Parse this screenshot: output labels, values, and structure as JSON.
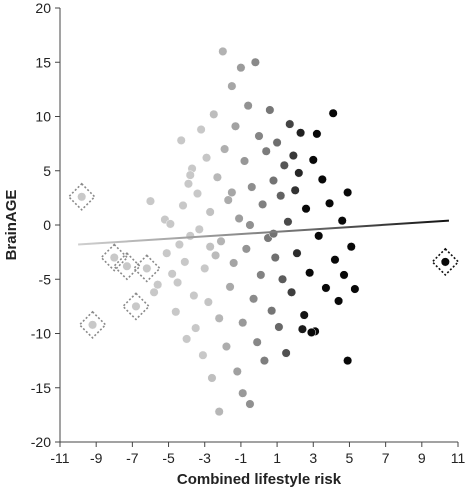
{
  "chart_data": {
    "type": "scatter",
    "xlabel": "Combined lifestyle risk",
    "ylabel": "BrainAGE",
    "xlim": [
      -11,
      11
    ],
    "ylim": [
      -20,
      20
    ],
    "x_ticks": [
      -11,
      -9,
      -7,
      -5,
      -3,
      -1,
      1,
      3,
      5,
      7,
      9,
      11
    ],
    "y_ticks": [
      -20,
      -15,
      -10,
      -5,
      0,
      5,
      10,
      15,
      20
    ],
    "grid": false,
    "legend": "none",
    "point_shading": "gray-to-black gradient with increasing combined lifestyle risk",
    "colors": {
      "low_risk": "#cccccc",
      "mid_risk": "#6e6e6e",
      "high_risk": "#000000",
      "axis": "#444444"
    },
    "trend_line": {
      "x": [
        -10,
        10.5
      ],
      "y": [
        -1.8,
        0.4
      ]
    },
    "highlighted_points": [
      {
        "x": -9.8,
        "y": 2.6
      },
      {
        "x": -9.2,
        "y": -9.2
      },
      {
        "x": -8.0,
        "y": -3.0
      },
      {
        "x": -7.3,
        "y": -3.8
      },
      {
        "x": -6.8,
        "y": -7.5
      },
      {
        "x": -6.2,
        "y": -4.0
      },
      {
        "x": 10.3,
        "y": -3.4
      }
    ],
    "points": [
      [
        -9.8,
        2.6
      ],
      [
        -9.2,
        -9.2
      ],
      [
        -8.0,
        -3.0
      ],
      [
        -7.3,
        -3.8
      ],
      [
        -6.8,
        -7.5
      ],
      [
        -6.2,
        -4.0
      ],
      [
        10.3,
        -3.4
      ],
      [
        -6.0,
        2.2
      ],
      [
        -5.8,
        -6.2
      ],
      [
        -5.6,
        -5.5
      ],
      [
        -5.2,
        0.5
      ],
      [
        -5.1,
        -2.6
      ],
      [
        -4.9,
        0.1
      ],
      [
        -4.8,
        -4.5
      ],
      [
        -4.6,
        -8.0
      ],
      [
        -4.5,
        -5.3
      ],
      [
        -4.3,
        7.8
      ],
      [
        -4.2,
        1.8
      ],
      [
        -4.1,
        -3.4
      ],
      [
        -4.0,
        -10.5
      ],
      [
        -3.9,
        3.8
      ],
      [
        -3.8,
        -1.0
      ],
      [
        -3.7,
        5.2
      ],
      [
        -3.6,
        -6.5
      ],
      [
        -3.5,
        -9.5
      ],
      [
        -3.4,
        2.9
      ],
      [
        -3.3,
        -0.4
      ],
      [
        -3.2,
        8.8
      ],
      [
        -3.1,
        -12.0
      ],
      [
        -3.0,
        -4.0
      ],
      [
        -2.9,
        6.2
      ],
      [
        -2.8,
        -7.1
      ],
      [
        -2.7,
        1.2
      ],
      [
        -2.6,
        -14.1
      ],
      [
        -2.5,
        10.2
      ],
      [
        -2.4,
        -2.8
      ],
      [
        -2.3,
        4.4
      ],
      [
        -2.2,
        -8.6
      ],
      [
        -2.1,
        -1.5
      ],
      [
        -2.0,
        16.0
      ],
      [
        -1.9,
        7.0
      ],
      [
        -1.8,
        -11.2
      ],
      [
        -1.7,
        2.3
      ],
      [
        -1.6,
        -5.7
      ],
      [
        -1.5,
        12.8
      ],
      [
        -1.4,
        -3.5
      ],
      [
        -1.3,
        9.1
      ],
      [
        -1.2,
        -13.5
      ],
      [
        -1.1,
        0.6
      ],
      [
        -1.0,
        14.5
      ],
      [
        -0.9,
        -9.0
      ],
      [
        -0.8,
        5.9
      ],
      [
        -0.7,
        -2.2
      ],
      [
        -0.6,
        11.0
      ],
      [
        -0.5,
        -16.5
      ],
      [
        -0.4,
        3.5
      ],
      [
        -0.3,
        -6.8
      ],
      [
        -0.2,
        15.0
      ],
      [
        -0.1,
        -10.8
      ],
      [
        0.0,
        8.2
      ],
      [
        0.1,
        -4.6
      ],
      [
        0.2,
        1.9
      ],
      [
        0.3,
        -12.5
      ],
      [
        0.4,
        6.8
      ],
      [
        0.5,
        -1.2
      ],
      [
        0.6,
        10.6
      ],
      [
        0.7,
        -7.9
      ],
      [
        0.8,
        4.1
      ],
      [
        0.9,
        -3.0
      ],
      [
        1.0,
        7.6
      ],
      [
        1.1,
        -9.4
      ],
      [
        1.2,
        2.7
      ],
      [
        1.3,
        -5.0
      ],
      [
        1.4,
        5.5
      ],
      [
        1.5,
        -11.8
      ],
      [
        1.6,
        0.3
      ],
      [
        1.7,
        9.3
      ],
      [
        1.8,
        -6.2
      ],
      [
        2.0,
        3.2
      ],
      [
        2.1,
        -2.6
      ],
      [
        2.3,
        8.5
      ],
      [
        2.5,
        -8.3
      ],
      [
        2.6,
        1.5
      ],
      [
        2.8,
        -4.4
      ],
      [
        3.0,
        6.0
      ],
      [
        3.1,
        -9.8
      ],
      [
        3.3,
        -1.0
      ],
      [
        3.5,
        4.2
      ],
      [
        3.7,
        -5.8
      ],
      [
        3.9,
        2.0
      ],
      [
        4.1,
        10.3
      ],
      [
        4.2,
        -3.2
      ],
      [
        4.4,
        -7.0
      ],
      [
        4.6,
        0.4
      ],
      [
        4.7,
        -4.6
      ],
      [
        4.9,
        3.0
      ],
      [
        4.9,
        -12.5
      ],
      [
        5.1,
        -2.0
      ],
      [
        5.3,
        -5.9
      ],
      [
        2.4,
        -9.6
      ],
      [
        2.9,
        -9.9
      ],
      [
        2.2,
        4.8
      ],
      [
        3.2,
        8.4
      ],
      [
        1.9,
        6.4
      ],
      [
        -2.2,
        -17.2
      ],
      [
        -0.9,
        -15.5
      ],
      [
        -3.8,
        4.6
      ],
      [
        -4.4,
        -1.8
      ],
      [
        -1.5,
        3.0
      ],
      [
        -0.5,
        0.0
      ],
      [
        0.8,
        -0.8
      ],
      [
        -2.7,
        -2.0
      ]
    ]
  }
}
